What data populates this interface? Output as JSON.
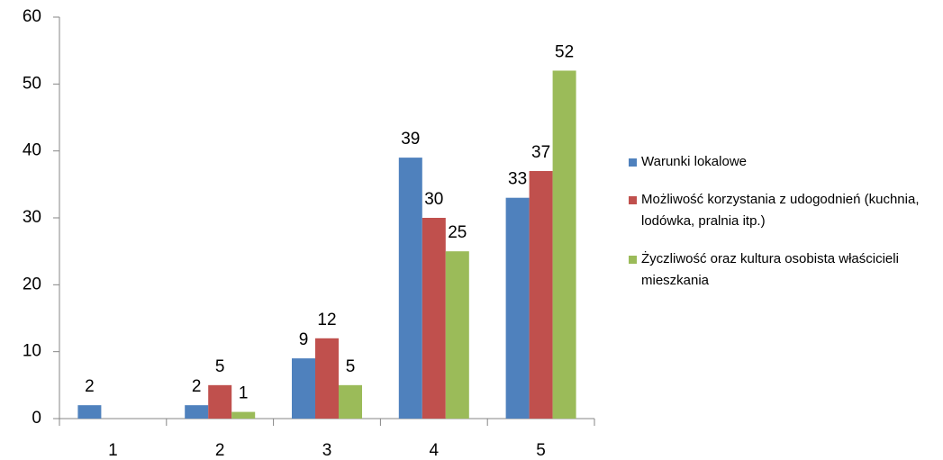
{
  "chart_data": {
    "type": "bar",
    "categories": [
      "1",
      "2",
      "3",
      "4",
      "5"
    ],
    "series": [
      {
        "name": "Warunki lokalowe",
        "color": "#4f81bd",
        "values": [
          2,
          2,
          9,
          39,
          33
        ]
      },
      {
        "name": "Możliwość korzystania  z udogodnień (kuchnia, lodówka, pralnia itp.)",
        "color": "#c0504d",
        "values": [
          null,
          5,
          12,
          30,
          37
        ]
      },
      {
        "name": "Życzliwość oraz kultura osobista właścicieli mieszkania",
        "color": "#9bbb59",
        "values": [
          null,
          1,
          5,
          25,
          52
        ]
      }
    ],
    "ylim": [
      0,
      60
    ],
    "yticks": [
      0,
      10,
      20,
      30,
      40,
      50,
      60
    ],
    "grid": false,
    "legend": "right"
  }
}
